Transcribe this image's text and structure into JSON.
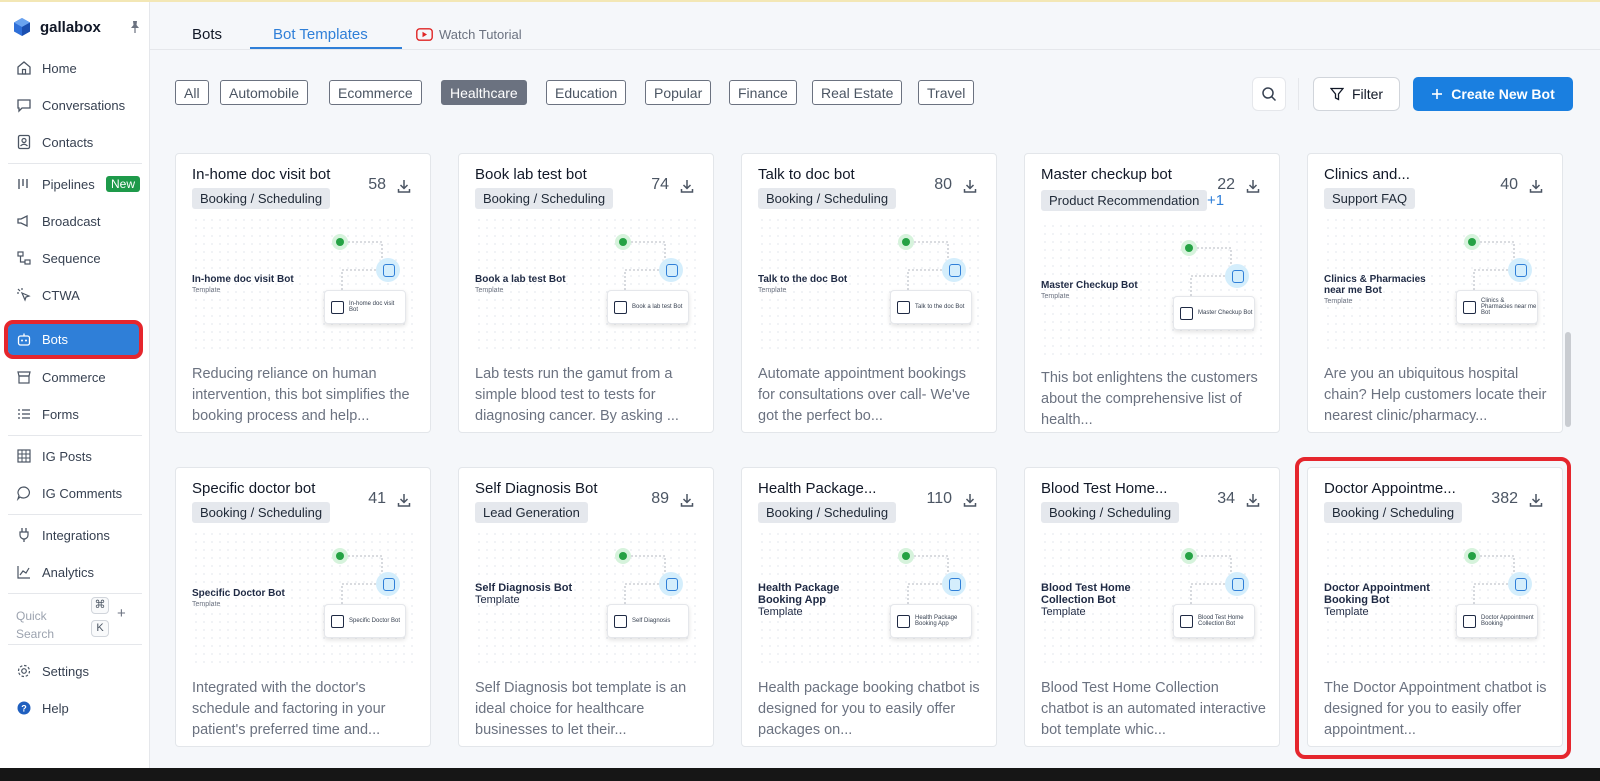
{
  "brand": {
    "name": "gallabox"
  },
  "sidebar": {
    "items": [
      {
        "label": "Home",
        "icon": "home-icon"
      },
      {
        "label": "Conversations",
        "icon": "chat-icon"
      },
      {
        "label": "Contacts",
        "icon": "contacts-icon"
      },
      {
        "label": "Pipelines",
        "icon": "pipelines-icon",
        "badge": "New"
      },
      {
        "label": "Broadcast",
        "icon": "broadcast-icon"
      },
      {
        "label": "Sequence",
        "icon": "sequence-icon"
      },
      {
        "label": "CTWA",
        "icon": "ctwa-icon"
      },
      {
        "label": "Bots",
        "icon": "bot-icon",
        "active": true
      },
      {
        "label": "Commerce",
        "icon": "commerce-icon"
      },
      {
        "label": "Forms",
        "icon": "forms-icon"
      },
      {
        "label": "IG Posts",
        "icon": "grid-icon"
      },
      {
        "label": "IG Comments",
        "icon": "comment-icon"
      },
      {
        "label": "Integrations",
        "icon": "plug-icon"
      },
      {
        "label": "Analytics",
        "icon": "analytics-icon"
      },
      {
        "label": "Settings",
        "icon": "gear-icon"
      },
      {
        "label": "Help",
        "icon": "help-icon"
      }
    ],
    "quick_search": {
      "label": "Quick Search",
      "key1": "⌘",
      "key2": "K",
      "plus": "+"
    }
  },
  "tabs": {
    "bots": "Bots",
    "templates": "Bot Templates",
    "watch": "Watch Tutorial"
  },
  "filters": [
    "All",
    "Automobile",
    "Ecommerce",
    "Healthcare",
    "Education",
    "Popular",
    "Finance",
    "Real Estate",
    "Travel"
  ],
  "active_filter": "Healthcare",
  "actions": {
    "filter": "Filter",
    "create": "Create New Bot"
  },
  "colors": {
    "accent": "#2f7fd8",
    "highlight": "#e5262d",
    "badge": "#1e9a4a"
  },
  "cards": [
    {
      "title": "In-home doc visit bot",
      "tag": "Booking / Scheduling",
      "count": "58",
      "pv_title": "In-home doc visit Bot",
      "pv_sub": "Template",
      "node": "In-home doc visit Bot",
      "desc": "Reducing reliance on human intervention, this bot simplifies the booking process and help..."
    },
    {
      "title": "Book lab test bot",
      "tag": "Booking / Scheduling",
      "count": "74",
      "pv_title": "Book a lab test Bot",
      "pv_sub": "Template",
      "node": "Book a lab test Bot",
      "desc": "Lab tests run the gamut from a simple blood test to tests for diagnosing cancer. By asking ..."
    },
    {
      "title": "Talk to doc bot",
      "tag": "Booking / Scheduling",
      "count": "80",
      "pv_title": "Talk to the doc Bot",
      "pv_sub": "Template",
      "node": "Talk to the doc Bot",
      "desc": "Automate appointment bookings for consultations over call- We've got the perfect bo..."
    },
    {
      "title": "Master checkup bot",
      "tag": "Product Recommendation",
      "extra": "+1",
      "count": "22",
      "pv_title": "Master Checkup Bot",
      "pv_sub": "Template",
      "node": "Master Checkup Bot",
      "desc": "This bot enlightens the customers about the comprehensive list of health..."
    },
    {
      "title": "Clinics and...",
      "tag": "Support FAQ",
      "count": "40",
      "pv_title": "Clinics & Pharmacies near me Bot",
      "pv_sub": "Template",
      "node": "Clinics & Pharmacies near me Bot",
      "desc": "Are you an ubiquitous hospital chain? Help customers locate their nearest clinic/pharmacy..."
    },
    {
      "title": "Specific doctor bot",
      "tag": "Booking / Scheduling",
      "count": "41",
      "pv_title": "Specific Doctor Bot",
      "pv_sub": "Template",
      "node": "Specific Doctor Bot",
      "desc": "Integrated with the doctor's schedule and factoring in your patient's preferred time and..."
    },
    {
      "title": "Self Diagnosis Bot",
      "tag": "Lead Generation",
      "count": "89",
      "pv_title": "Self Diagnosis Bot",
      "pv_sub": "Template",
      "node": "Self Diagnosis",
      "desc": "Self Diagnosis bot template is an ideal choice for healthcare businesses to let their..."
    },
    {
      "title": "Health Package...",
      "tag": "Booking / Scheduling",
      "count": "110",
      "pv_title": "Health Package Booking App",
      "pv_sub": "Template",
      "node": "Health Package Booking App",
      "desc": "Health package booking chatbot is designed for you to easily offer packages on..."
    },
    {
      "title": "Blood Test Home...",
      "tag": "Booking / Scheduling",
      "count": "34",
      "pv_title": "Blood Test Home Collection Bot",
      "pv_sub": "Template",
      "node": "Blood Test Home Collection Bot",
      "desc": "Blood Test Home Collection chatbot is an automated interactive bot template whic..."
    },
    {
      "title": "Doctor Appointme...",
      "tag": "Booking / Scheduling",
      "count": "382",
      "pv_title": "Doctor Appointment Booking Bot",
      "pv_sub": "Template",
      "node": "Doctor Appointment Booking",
      "desc": "The Doctor Appointment chatbot is designed for you to easily offer appointment..."
    }
  ]
}
